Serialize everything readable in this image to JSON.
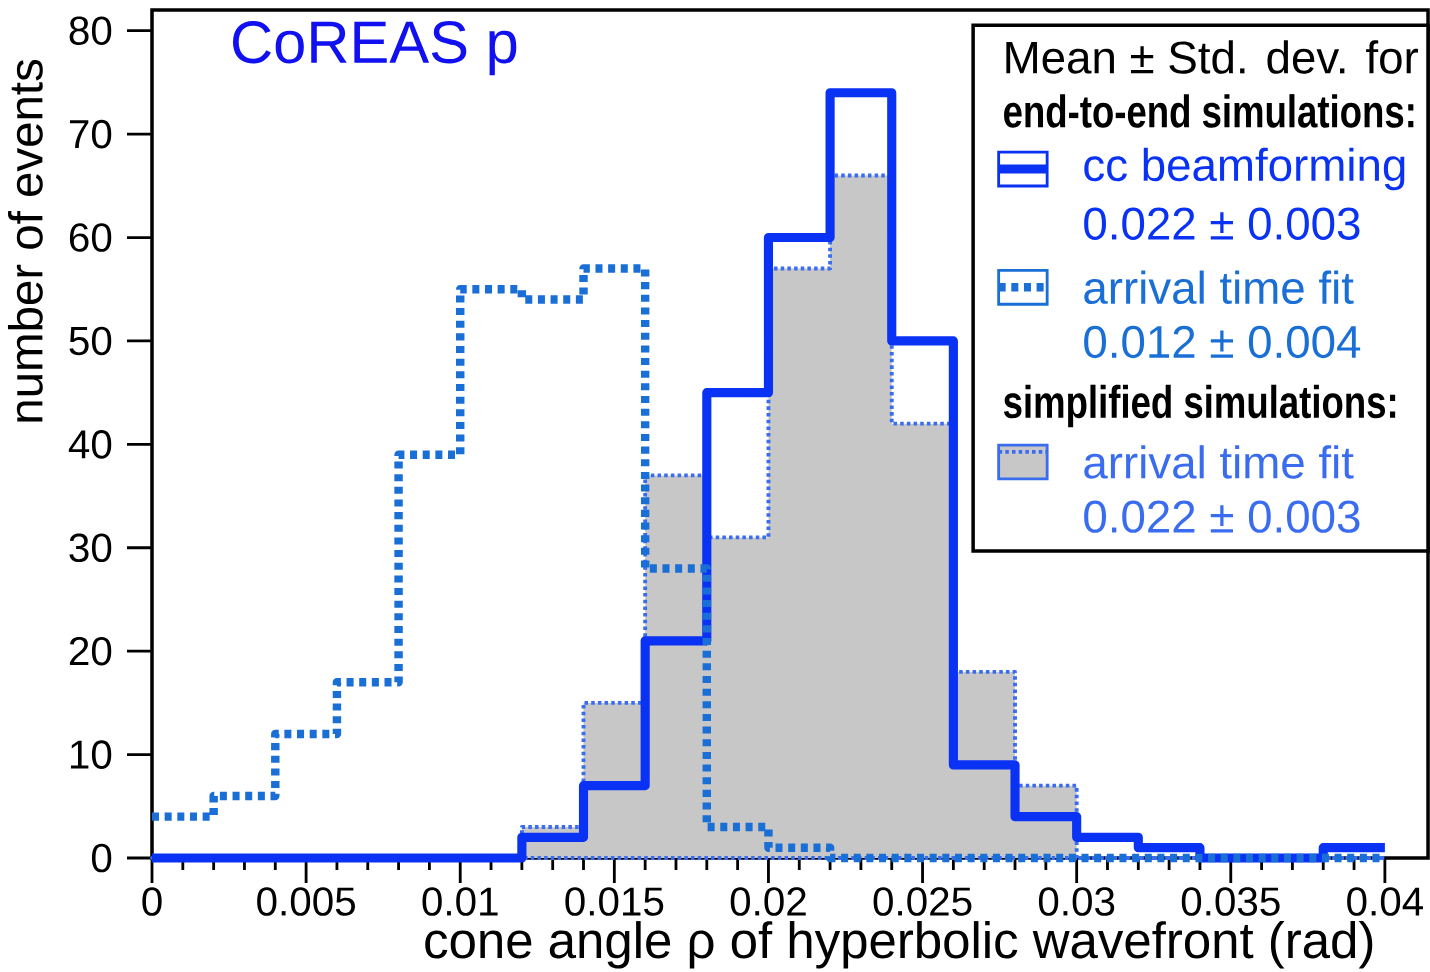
{
  "chart_data": {
    "type": "histogram",
    "xlabel": "cone angle ρ of hyperbolic wavefront (rad)",
    "ylabel": "number of events",
    "legend_title": "Mean ± Std. dev. for",
    "annotations": [
      "CoREAS p",
      "end-to-end simulations:",
      "0.022 ± 0.003",
      "0.012 ± 0.004",
      "simplified simulations:",
      "0.022 ± 0.003"
    ],
    "bins": [
      0,
      0.002,
      0.004,
      0.006,
      0.008,
      0.01,
      0.012,
      0.014,
      0.016,
      0.018,
      0.02,
      0.022,
      0.024,
      0.026,
      0.028,
      0.03,
      0.032,
      0.034,
      0.036,
      0.038,
      0.04
    ],
    "series": [
      {
        "name": "cc beamforming",
        "color": "#0a32f5",
        "line_style": "solid",
        "values": [
          0,
          0,
          0,
          0,
          0,
          0,
          2,
          7,
          21,
          45,
          60,
          74,
          50,
          9,
          4,
          2,
          1,
          0,
          0,
          1
        ]
      },
      {
        "name": "arrival time fit",
        "color": "#1a6fd6",
        "line_style": "dotted",
        "values": [
          4,
          6,
          12,
          17,
          39,
          55,
          54,
          57,
          28,
          3,
          1,
          0,
          0,
          0,
          0,
          0,
          0,
          0,
          0,
          0
        ]
      },
      {
        "name": "arrival time fit",
        "color": "#3a6cf0",
        "line_style": "dotted",
        "values": [
          0,
          0,
          0,
          0,
          0,
          0,
          3,
          15,
          37,
          31,
          57,
          66,
          42,
          18,
          7,
          0,
          0,
          0,
          0,
          0
        ]
      }
    ],
    "xlim": [
      0,
      0.0414
    ],
    "ylim": [
      0,
      82
    ],
    "xticks": [
      0,
      0.005,
      0.01,
      0.015,
      0.02,
      0.025,
      0.03,
      0.035,
      0.04
    ],
    "yticks": [
      0,
      10,
      20,
      30,
      40,
      50,
      60,
      70,
      80
    ],
    "grid": false,
    "legend": "top right",
    "marker": "none"
  }
}
